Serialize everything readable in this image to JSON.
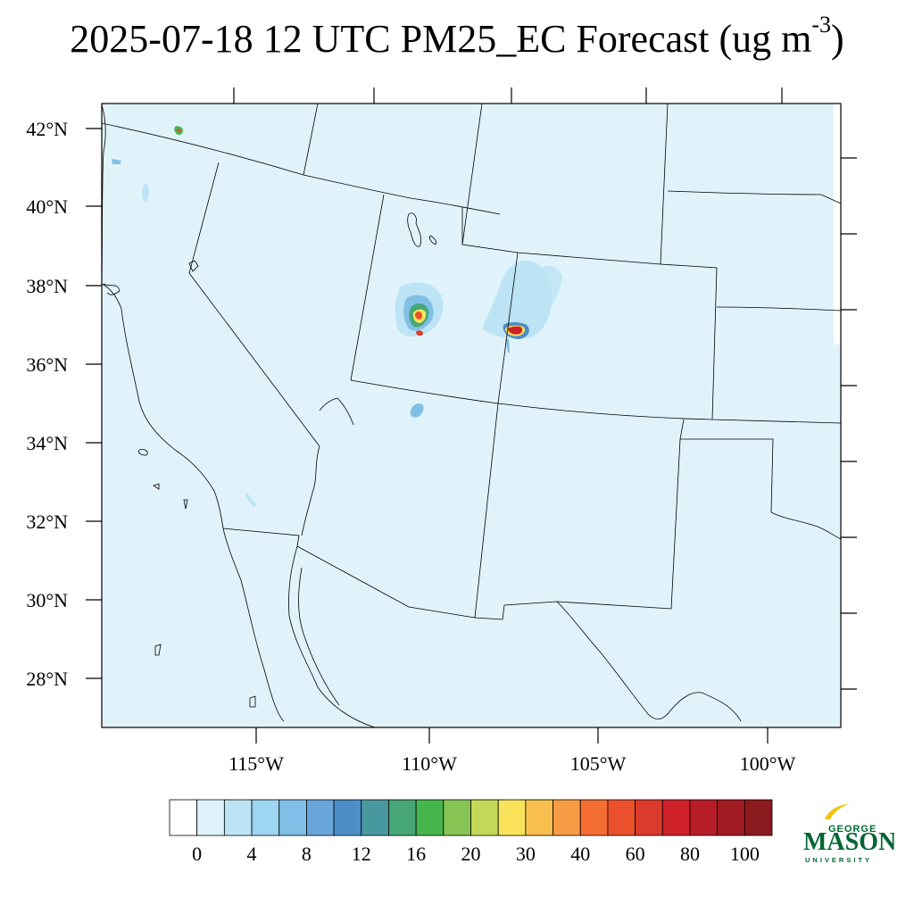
{
  "title": {
    "main": "2025-07-18 12 UTC PM25_EC Forecast (ug m",
    "superscript": "-3",
    "close": ")"
  },
  "map": {
    "background_color": "#e0f3fb",
    "lat_labels": [
      "42°N",
      "40°N",
      "38°N",
      "36°N",
      "34°N",
      "32°N",
      "30°N",
      "28°N"
    ],
    "lon_labels": [
      "115°W",
      "110°W",
      "105°W",
      "100°W"
    ]
  },
  "colorbar": {
    "colors": [
      "#ffffff",
      "#e0f3fb",
      "#bce4f5",
      "#9cd6f3",
      "#80bfe6",
      "#68a6db",
      "#4c8ec8",
      "#47999f",
      "#46a677",
      "#46b54c",
      "#86c553",
      "#c3d857",
      "#f8e35a",
      "#f8bf4e",
      "#f79b44",
      "#f46d32",
      "#e9502b",
      "#dc3a2a",
      "#ce2029",
      "#b81c26",
      "#a11c22",
      "#8b1a1e"
    ],
    "labels": [
      "0",
      "4",
      "8",
      "12",
      "16",
      "20",
      "30",
      "40",
      "60",
      "80",
      "100"
    ]
  },
  "logo": {
    "top_word": "GEORGE",
    "main_word": "MASON",
    "bottom_word": "UNIVERSITY",
    "gold": "#f2c314",
    "green": "#006633"
  }
}
